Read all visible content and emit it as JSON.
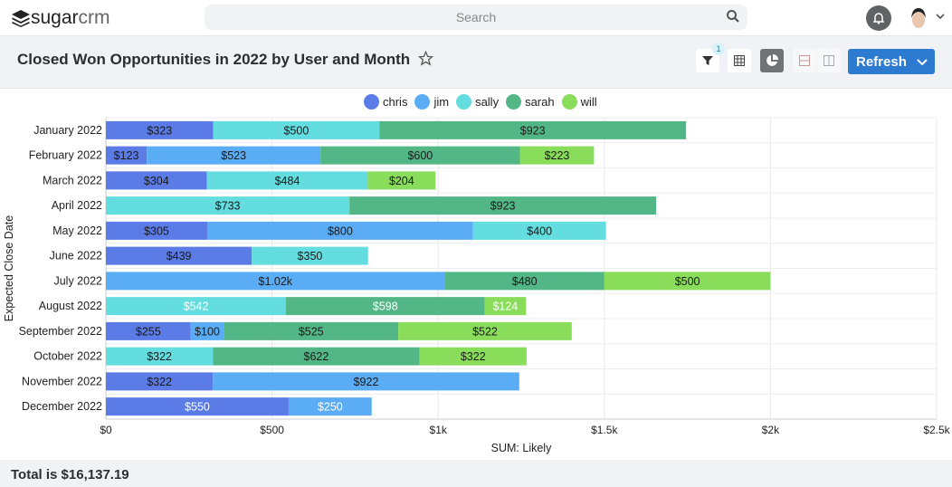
{
  "app": {
    "logo_main": "sugar",
    "logo_sub": "crm"
  },
  "search": {
    "placeholder": "Search"
  },
  "header": {
    "title": "Closed Won Opportunities in 2022 by User and Month",
    "filter_count": "1",
    "refresh_label": "Refresh"
  },
  "footer": {
    "total": "Total is $16,137.19"
  },
  "colors": {
    "chris": "#5b7be6",
    "jim": "#5aadf5",
    "sally": "#63dddf",
    "sarah": "#53b686",
    "will": "#89dd5b",
    "accent": "#2c7bd0"
  },
  "chart_data": {
    "type": "bar",
    "orientation": "horizontal",
    "stacked": true,
    "title": "",
    "xlabel": "SUM: Likely",
    "ylabel": "Expected Close Date",
    "xlim": [
      0,
      2500
    ],
    "xticks": [
      0,
      500,
      1000,
      1500,
      2000,
      2500
    ],
    "xtick_labels": [
      "$0",
      "$500",
      "$1k",
      "$1.5k",
      "$2k",
      "$2.5k"
    ],
    "grid": true,
    "legend_position": "top",
    "categories": [
      "January 2022",
      "February 2022",
      "March 2022",
      "April 2022",
      "May 2022",
      "June 2022",
      "July 2022",
      "August 2022",
      "September 2022",
      "October 2022",
      "November 2022",
      "December 2022"
    ],
    "series": [
      {
        "name": "chris",
        "values": [
          323,
          123,
          304,
          0,
          305,
          439,
          0,
          0,
          255,
          0,
          322,
          550
        ]
      },
      {
        "name": "jim",
        "values": [
          0,
          523,
          0,
          0,
          800,
          0,
          1020,
          0,
          100,
          0,
          922,
          250
        ]
      },
      {
        "name": "sally",
        "values": [
          500,
          0,
          484,
          733,
          400,
          350,
          0,
          542,
          0,
          322,
          0,
          0
        ]
      },
      {
        "name": "sarah",
        "values": [
          923,
          600,
          0,
          923,
          0,
          0,
          480,
          598,
          525,
          622,
          0,
          0
        ]
      },
      {
        "name": "will",
        "values": [
          0,
          223,
          204,
          0,
          0,
          0,
          500,
          124,
          522,
          322,
          0,
          0
        ]
      }
    ],
    "data_labels": [
      [
        "$323",
        "$123",
        "$304",
        "",
        "$305",
        "$439",
        "",
        "",
        "$255",
        "",
        "$322",
        "$550"
      ],
      [
        "",
        "$523",
        "",
        "",
        "$800",
        "",
        "$1.02k",
        "",
        "$100",
        "",
        "$922",
        "$250"
      ],
      [
        "$500",
        "",
        "$484",
        "$733",
        "$400",
        "$350",
        "",
        "$542",
        "",
        "$322",
        "",
        ""
      ],
      [
        "$923",
        "$600",
        "",
        "$923",
        "",
        "",
        "$480",
        "$598",
        "$525",
        "$622",
        "",
        ""
      ],
      [
        "",
        "$223",
        "$204",
        "",
        "",
        "",
        "$500",
        "$124",
        "$522",
        "$322",
        "",
        ""
      ]
    ]
  }
}
